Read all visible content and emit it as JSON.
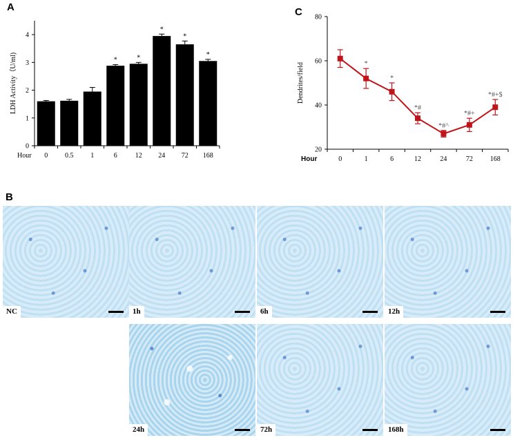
{
  "panel_letters": {
    "a": "A",
    "b": "B",
    "c": "C"
  },
  "chart_data": [
    {
      "type": "bar",
      "ylabel": "LDH Activity（U/ml)",
      "xlabel": "Hour",
      "categories": [
        "0",
        "0.5",
        "1",
        "6",
        "12",
        "24",
        "72",
        "168"
      ],
      "values": [
        1.6,
        1.62,
        1.95,
        2.88,
        2.95,
        3.95,
        3.65,
        3.05
      ],
      "errors": [
        0.03,
        0.05,
        0.15,
        0.04,
        0.05,
        0.07,
        0.12,
        0.06
      ],
      "annotations": [
        "",
        "",
        "",
        "*",
        "*",
        "*",
        "*",
        "*"
      ],
      "yticks": [
        "0",
        "1",
        "2",
        "3",
        "4"
      ],
      "ylim": [
        0,
        4.5
      ],
      "color": "#000000"
    },
    {
      "type": "line",
      "ylabel": "Dendrites/field",
      "xlabel": "Hour",
      "categories": [
        "0",
        "1",
        "6",
        "12",
        "24",
        "72",
        "168"
      ],
      "values": [
        61,
        52,
        46,
        34,
        27,
        31,
        39
      ],
      "errors": [
        4,
        4.5,
        4,
        2.5,
        1.5,
        3,
        3.5
      ],
      "annotations": [
        "",
        "*",
        "*",
        "*#",
        "*#^",
        "*#+",
        "*#+$"
      ],
      "yticks": [
        "20",
        "40",
        "60",
        "80"
      ],
      "ylim": [
        20,
        80
      ],
      "color": "#c0141b"
    }
  ],
  "micrographs": {
    "row1": [
      "NC",
      "1h",
      "6h",
      "12h"
    ],
    "row2": [
      "24h",
      "72h",
      "168h"
    ]
  }
}
